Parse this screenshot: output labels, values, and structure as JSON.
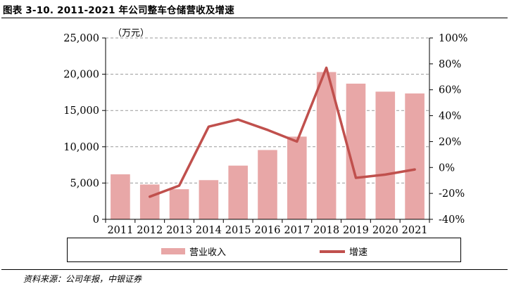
{
  "figure_title": "图表 3-10. 2011-2021 年公司整车仓储营收及增速",
  "source_note": "资料来源：公司年报，中银证券",
  "chart_data": {
    "type": "bar",
    "unit_label": "（万元）",
    "categories": [
      "2011",
      "2012",
      "2013",
      "2014",
      "2015",
      "2016",
      "2017",
      "2018",
      "2019",
      "2020",
      "2021"
    ],
    "series": [
      {
        "name": "营业收入",
        "kind": "bar",
        "axis": "left",
        "color": "#e8a7a7",
        "values": [
          6200,
          4800,
          4150,
          5400,
          7400,
          9550,
          11400,
          20300,
          18700,
          17600,
          17350
        ]
      },
      {
        "name": "增速",
        "kind": "line",
        "axis": "right",
        "color": "#c0504d",
        "values": [
          null,
          -22.5,
          -14,
          31.5,
          37,
          29,
          20,
          77,
          -8,
          -5.5,
          -1.5
        ]
      }
    ],
    "y_left": {
      "min": 0,
      "max": 25000,
      "ticks": [
        0,
        5000,
        10000,
        15000,
        20000,
        25000
      ],
      "tick_labels": [
        "0",
        "5,000",
        "10,000",
        "15,000",
        "20,000",
        "25,000"
      ]
    },
    "y_right": {
      "min": -40,
      "max": 100,
      "ticks": [
        -40,
        -20,
        0,
        20,
        40,
        60,
        80,
        100
      ],
      "tick_labels": [
        "-40%",
        "-20%",
        "0%",
        "20%",
        "40%",
        "60%",
        "80%",
        "100%"
      ]
    },
    "grid": "dashed horizontal",
    "legend_position": "bottom"
  }
}
